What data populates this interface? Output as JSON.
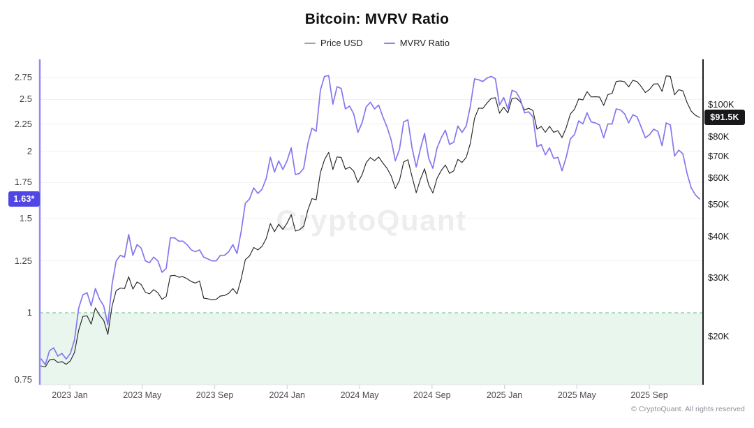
{
  "title": "Bitcoin: MVRV Ratio",
  "legend": [
    {
      "label": "Price USD",
      "color": "#9ca3af"
    },
    {
      "label": "MVRV Ratio",
      "color": "#8b7ff2"
    }
  ],
  "watermark": {
    "text": "CryptoQuant"
  },
  "footer": {
    "copyright": "© CryptoQuant. All rights reserved"
  },
  "badges": {
    "mvrv_current": "1.63*",
    "price_current": "$91.5K"
  },
  "axes": {
    "left": {
      "scale": "log",
      "ticks": [
        {
          "label": "2.75",
          "value": 2.75
        },
        {
          "label": "2.5",
          "value": 2.5
        },
        {
          "label": "2.25",
          "value": 2.25
        },
        {
          "label": "2",
          "value": 2
        },
        {
          "label": "1.75",
          "value": 1.75
        },
        {
          "label": "1.5",
          "value": 1.5
        },
        {
          "label": "1.25",
          "value": 1.25
        },
        {
          "label": "1",
          "value": 1
        },
        {
          "label": "0.75",
          "value": 0.75
        }
      ]
    },
    "right": {
      "scale": "log",
      "ticks": [
        {
          "label": "$100K",
          "value": 100
        },
        {
          "label": "$80K",
          "value": 80
        },
        {
          "label": "$70K",
          "value": 70
        },
        {
          "label": "$60K",
          "value": 60
        },
        {
          "label": "$50K",
          "value": 50
        },
        {
          "label": "$40K",
          "value": 40
        },
        {
          "label": "$30K",
          "value": 30
        },
        {
          "label": "$20K",
          "value": 20
        }
      ]
    },
    "x": {
      "ticks": [
        {
          "label": "2023 Jan",
          "month": 0
        },
        {
          "label": "2023 May",
          "month": 4
        },
        {
          "label": "2023 Sep",
          "month": 8
        },
        {
          "label": "2024 Jan",
          "month": 12
        },
        {
          "label": "2024 May",
          "month": 16
        },
        {
          "label": "2024 Sep",
          "month": 20
        },
        {
          "label": "2025 Jan",
          "month": 24
        },
        {
          "label": "2025 May",
          "month": 28
        },
        {
          "label": "2025 Sep",
          "month": 32
        }
      ]
    }
  },
  "chart_data": {
    "type": "line",
    "title": "Bitcoin: MVRV Ratio",
    "x_start": "2022-11-14",
    "x_end": "2025-11-24",
    "interval_days": 7,
    "ylim_left_mvrv": [
      0.72,
      2.85
    ],
    "ylim_right_usd_k": [
      17,
      130
    ],
    "grid": "horizontal-only",
    "legend_position": "top-center",
    "annotations": {
      "mvrv_breakeven_line": 1.0,
      "shaded_region_below_mvrv": 1.0,
      "current_mvrv": 1.63,
      "current_price_usd_k": 91.5
    },
    "series": [
      {
        "name": "Price USD",
        "axis": "right",
        "unit": "USD thousands",
        "color": "#26262b",
        "values": [
          16.3,
          16.2,
          17.0,
          17.1,
          16.7,
          16.8,
          16.5,
          16.9,
          17.9,
          20.9,
          23.0,
          23.1,
          21.8,
          24.4,
          23.2,
          22.4,
          20.3,
          24.7,
          27.5,
          28.0,
          27.9,
          30.3,
          27.8,
          29.2,
          28.7,
          27.2,
          26.9,
          27.7,
          27.1,
          25.9,
          26.4,
          30.5,
          30.6,
          30.2,
          30.3,
          29.9,
          29.3,
          29.0,
          29.4,
          26.1,
          26.0,
          25.8,
          25.9,
          26.5,
          26.6,
          27.0,
          27.9,
          26.9,
          29.9,
          34.1,
          35.0,
          37.1,
          36.5,
          37.4,
          39.5,
          43.8,
          41.4,
          43.6,
          42.1,
          43.9,
          46.6,
          41.6,
          42.0,
          43.0,
          48.2,
          52.1,
          51.7,
          62.4,
          68.3,
          71.8,
          63.8,
          69.6,
          69.4,
          63.9,
          64.9,
          63.1,
          58.3,
          61.5,
          66.9,
          69.3,
          67.8,
          69.6,
          66.7,
          64.3,
          61.0,
          55.9,
          59.2,
          67.2,
          68.3,
          60.7,
          54.3,
          59.5,
          64.1,
          57.3,
          54.2,
          60.0,
          63.3,
          65.8,
          62.1,
          63.2,
          68.4,
          67.0,
          69.4,
          76.5,
          91.0,
          97.7,
          97.5,
          101.2,
          104.5,
          105.0,
          94.3,
          98.3,
          94.5,
          104.5,
          104.8,
          102.0,
          96.5,
          97.5,
          96.1,
          84.4,
          86.0,
          82.6,
          86.1,
          82.6,
          83.5,
          79.6,
          85.2,
          93.8,
          96.9,
          104.1,
          103.4,
          109.5,
          105.6,
          105.7,
          105.5,
          99.5,
          107.3,
          108.2,
          117.5,
          118.0,
          117.3,
          113.2,
          118.5,
          117.4,
          113.5,
          108.8,
          111.2,
          115.4,
          115.7,
          109.7,
          122.2,
          121.7,
          107.2,
          111.0,
          110.1,
          101.5,
          95.6,
          93.0,
          91.5
        ]
      },
      {
        "name": "MVRV Ratio",
        "axis": "left",
        "unit": "ratio",
        "color": "#8477ee",
        "values": [
          0.82,
          0.8,
          0.85,
          0.86,
          0.83,
          0.84,
          0.82,
          0.84,
          0.89,
          1.02,
          1.08,
          1.09,
          1.03,
          1.11,
          1.06,
          1.03,
          0.95,
          1.13,
          1.25,
          1.28,
          1.27,
          1.4,
          1.28,
          1.34,
          1.32,
          1.25,
          1.24,
          1.27,
          1.25,
          1.19,
          1.21,
          1.38,
          1.38,
          1.36,
          1.36,
          1.34,
          1.31,
          1.3,
          1.31,
          1.27,
          1.26,
          1.25,
          1.25,
          1.28,
          1.28,
          1.3,
          1.34,
          1.29,
          1.42,
          1.6,
          1.63,
          1.71,
          1.67,
          1.7,
          1.78,
          1.95,
          1.83,
          1.92,
          1.85,
          1.92,
          2.03,
          1.81,
          1.82,
          1.86,
          2.07,
          2.21,
          2.18,
          2.6,
          2.76,
          2.77,
          2.45,
          2.64,
          2.62,
          2.4,
          2.43,
          2.35,
          2.17,
          2.26,
          2.42,
          2.47,
          2.4,
          2.44,
          2.32,
          2.22,
          2.1,
          1.92,
          2.02,
          2.27,
          2.29,
          2.03,
          1.87,
          2.02,
          2.16,
          1.94,
          1.86,
          2.03,
          2.12,
          2.19,
          2.06,
          2.08,
          2.23,
          2.17,
          2.23,
          2.43,
          2.73,
          2.72,
          2.7,
          2.74,
          2.76,
          2.73,
          2.44,
          2.52,
          2.4,
          2.6,
          2.58,
          2.5,
          2.36,
          2.37,
          2.32,
          2.04,
          2.06,
          1.97,
          2.03,
          1.94,
          1.95,
          1.84,
          1.95,
          2.11,
          2.15,
          2.28,
          2.25,
          2.36,
          2.27,
          2.26,
          2.24,
          2.12,
          2.25,
          2.25,
          2.4,
          2.39,
          2.35,
          2.26,
          2.34,
          2.32,
          2.22,
          2.12,
          2.15,
          2.2,
          2.18,
          2.05,
          2.26,
          2.24,
          1.96,
          2.01,
          1.98,
          1.82,
          1.71,
          1.66,
          1.63
        ]
      }
    ]
  },
  "style": {
    "mvrv_line": "#8477ee",
    "price_line": "#26262b",
    "left_axis_line": "#938bf2",
    "right_axis_line": "#1c1c1f",
    "bottom_axis_line": "#e4e4e7",
    "gridline": "#f1f1f3",
    "green_area_fill": "rgba(121,197,152,0.16)",
    "green_dashed_line": "#7fcb9b",
    "tick_mark": "#d4d4d8"
  }
}
